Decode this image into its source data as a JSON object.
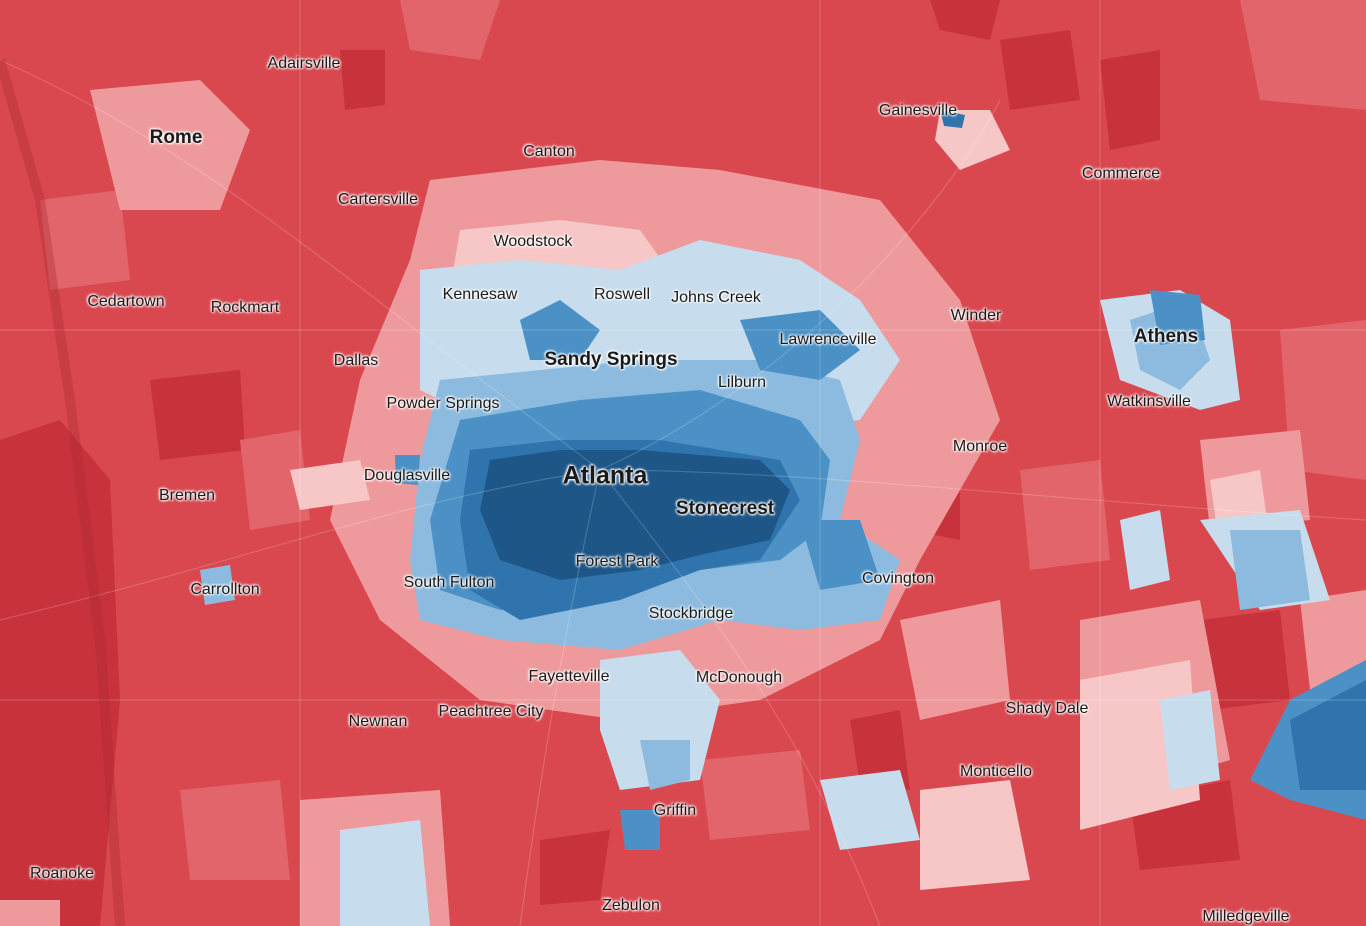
{
  "map": {
    "legend_colors": {
      "strong_red": "#c8323c",
      "red": "#d9474f",
      "medium_red": "#e2656b",
      "light_red": "#ee9a9c",
      "pale_red": "#f7c7c7",
      "pale_blue": "#c7dced",
      "light_blue": "#8dbbdf",
      "medium_blue": "#4b91c6",
      "blue": "#2f74ad",
      "dark_blue": "#1d5687"
    },
    "places": {
      "rome": "Rome",
      "adairsville": "Adairsville",
      "canton": "Canton",
      "gainesville": "Gainesville",
      "commerce": "Commerce",
      "cartersville": "Cartersville",
      "woodstock": "Woodstock",
      "kennesaw": "Kennesaw",
      "roswell": "Roswell",
      "johns_creek": "Johns Creek",
      "cedartown": "Cedartown",
      "rockmart": "Rockmart",
      "winder": "Winder",
      "athens": "Athens",
      "lawrenceville": "Lawrenceville",
      "sandy_springs": "Sandy Springs",
      "dallas": "Dallas",
      "lilburn": "Lilburn",
      "powder_springs": "Powder Springs",
      "watkinsville": "Watkinsville",
      "monroe": "Monroe",
      "douglasville": "Douglasville",
      "atlanta": "Atlanta",
      "bremen": "Bremen",
      "stonecrest": "Stonecrest",
      "forest_park": "Forest Park",
      "south_fulton": "South Fulton",
      "covington": "Covington",
      "carrollton": "Carrollton",
      "stockbridge": "Stockbridge",
      "fayetteville": "Fayetteville",
      "mcdonough": "McDonough",
      "shady_dale": "Shady Dale",
      "newnan": "Newnan",
      "peachtree_city": "Peachtree City",
      "monticello": "Monticello",
      "griffin": "Griffin",
      "roanoke": "Roanoke",
      "zebulon": "Zebulon",
      "milledgeville": "Milledgeville"
    }
  }
}
